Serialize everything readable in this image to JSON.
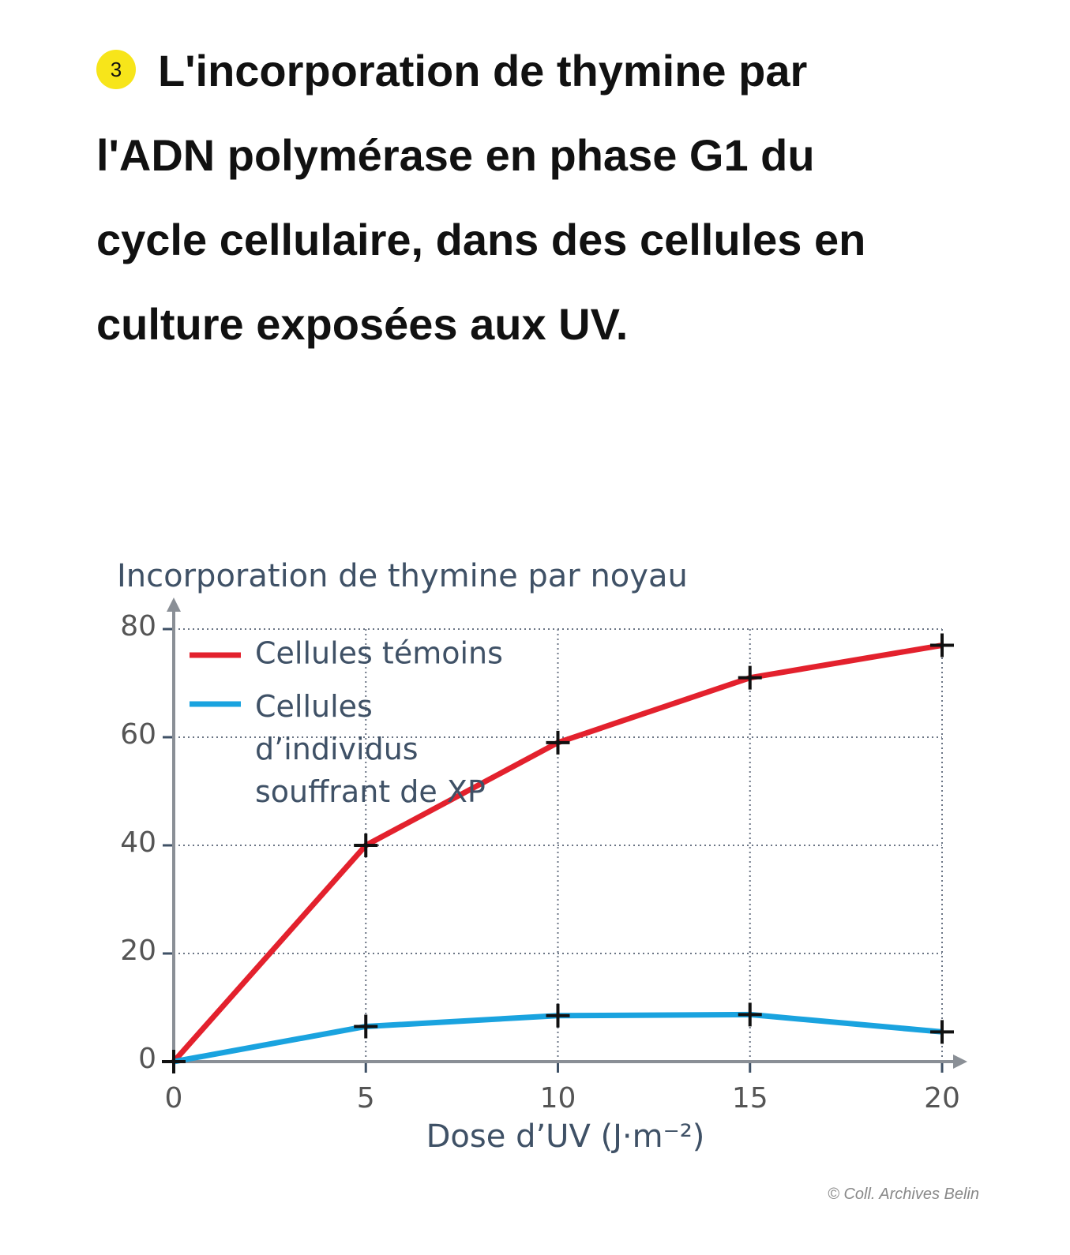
{
  "header": {
    "number": "3",
    "title": "L'incorporation de thymine par l'ADN polymérase en phase G1 du cycle cellulaire, dans des cellules en culture exposées aux UV."
  },
  "chart_data": {
    "type": "line",
    "y_label": "Incorporation de thymine par noyau",
    "x_label": "Dose d’UV (J·m⁻²)",
    "x": [
      0,
      5,
      10,
      15,
      20
    ],
    "series": [
      {
        "name": "Cellules témoins",
        "color": "#e3212d",
        "values": [
          0,
          40,
          59,
          71,
          77
        ]
      },
      {
        "name": "Cellules d’individus souffrant de XP",
        "color": "#1aa3df",
        "values": [
          0,
          6.5,
          8.5,
          8.7,
          5.5
        ]
      }
    ],
    "xlim": [
      0,
      20
    ],
    "ylim": [
      0,
      80
    ],
    "xticks": [
      0,
      5,
      10,
      15,
      20
    ],
    "yticks": [
      0,
      20,
      40,
      60,
      80
    ],
    "grid": true,
    "legend": "top-left"
  },
  "credit": "© Coll. Archives Belin"
}
